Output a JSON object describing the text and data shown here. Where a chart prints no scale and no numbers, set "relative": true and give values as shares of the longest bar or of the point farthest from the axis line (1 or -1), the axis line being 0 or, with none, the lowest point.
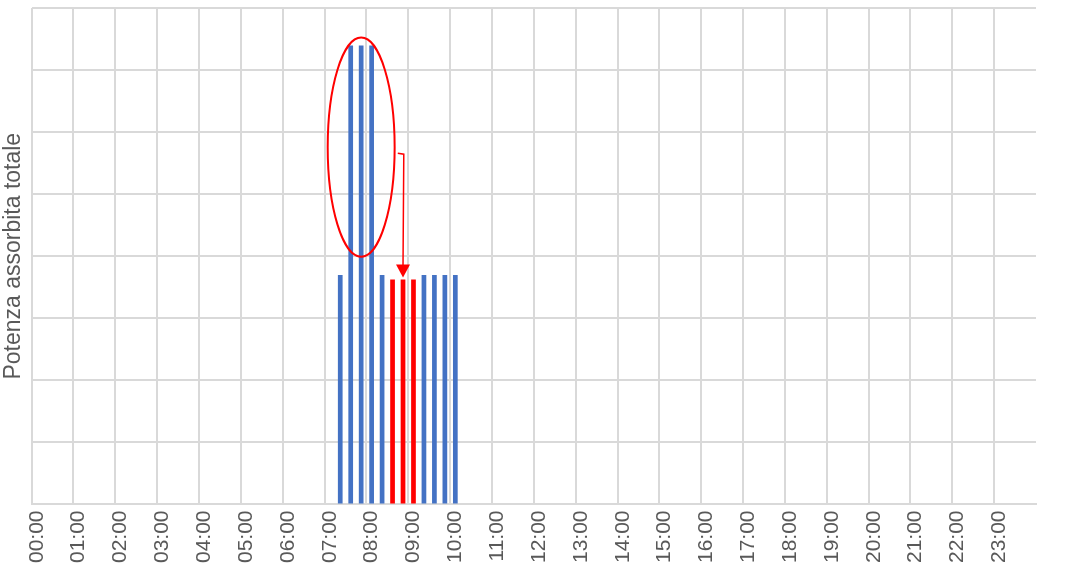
{
  "chart_data": {
    "type": "bar",
    "ylabel": "Potenza assorbita totale",
    "relative": true,
    "grid": true,
    "legend": false,
    "categories": [
      "00:00",
      null,
      null,
      null,
      "01:00",
      null,
      null,
      null,
      "02:00",
      null,
      null,
      null,
      "03:00",
      null,
      null,
      null,
      "04:00",
      null,
      null,
      null,
      "05:00",
      null,
      null,
      null,
      "06:00",
      null,
      null,
      null,
      "07:00",
      null,
      null,
      null,
      "08:00",
      null,
      null,
      null,
      "09:00",
      null,
      null,
      null,
      "10:00",
      null,
      null,
      null,
      "11:00",
      null,
      null,
      null,
      "12:00",
      null,
      null,
      null,
      "13:00",
      null,
      null,
      null,
      "14:00",
      null,
      null,
      null,
      "15:00",
      null,
      null,
      null,
      "16:00",
      null,
      null,
      null,
      "17:00",
      null,
      null,
      null,
      "18:00",
      null,
      null,
      null,
      "19:00",
      null,
      null,
      null,
      "20:00",
      null,
      null,
      null,
      "21:00",
      null,
      null,
      null,
      "22:00",
      null,
      null,
      null,
      "23:00",
      null,
      null,
      null
    ],
    "series": [
      {
        "color": "#4472c4",
        "values": [
          null,
          null,
          null,
          null,
          null,
          null,
          null,
          null,
          null,
          null,
          null,
          null,
          null,
          null,
          null,
          null,
          null,
          null,
          null,
          null,
          null,
          null,
          null,
          null,
          null,
          null,
          null,
          null,
          null,
          0.5,
          1,
          1,
          1,
          0.5,
          null,
          null,
          null,
          0.5,
          0.5,
          0.5,
          0.5,
          null,
          null,
          null,
          null,
          null,
          null,
          null,
          null,
          null,
          null,
          null,
          null,
          null,
          null,
          null,
          null,
          null,
          null,
          null,
          null,
          null,
          null,
          null,
          null,
          null,
          null,
          null,
          null,
          null,
          null,
          null,
          null,
          null,
          null,
          null,
          null,
          null,
          null,
          null,
          null,
          null,
          null,
          null,
          null,
          null,
          null,
          null,
          null,
          null,
          null,
          null,
          null,
          null,
          null,
          null
        ]
      },
      {
        "color": "#ff0000",
        "values": [
          null,
          null,
          null,
          null,
          null,
          null,
          null,
          null,
          null,
          null,
          null,
          null,
          null,
          null,
          null,
          null,
          null,
          null,
          null,
          null,
          null,
          null,
          null,
          null,
          null,
          null,
          null,
          null,
          null,
          null,
          null,
          null,
          null,
          null,
          0.49,
          0.49,
          0.49,
          null,
          null,
          null,
          null,
          null,
          null,
          null,
          null,
          null,
          null,
          null,
          null,
          null,
          null,
          null,
          null,
          null,
          null,
          null,
          null,
          null,
          null,
          null,
          null,
          null,
          null,
          null,
          null,
          null,
          null,
          null,
          null,
          null,
          null,
          null,
          null,
          null,
          null,
          null,
          null,
          null,
          null,
          null,
          null,
          null,
          null,
          null,
          null,
          null,
          null,
          null,
          null,
          null,
          null,
          null,
          null,
          null,
          null,
          null
        ]
      }
    ]
  }
}
